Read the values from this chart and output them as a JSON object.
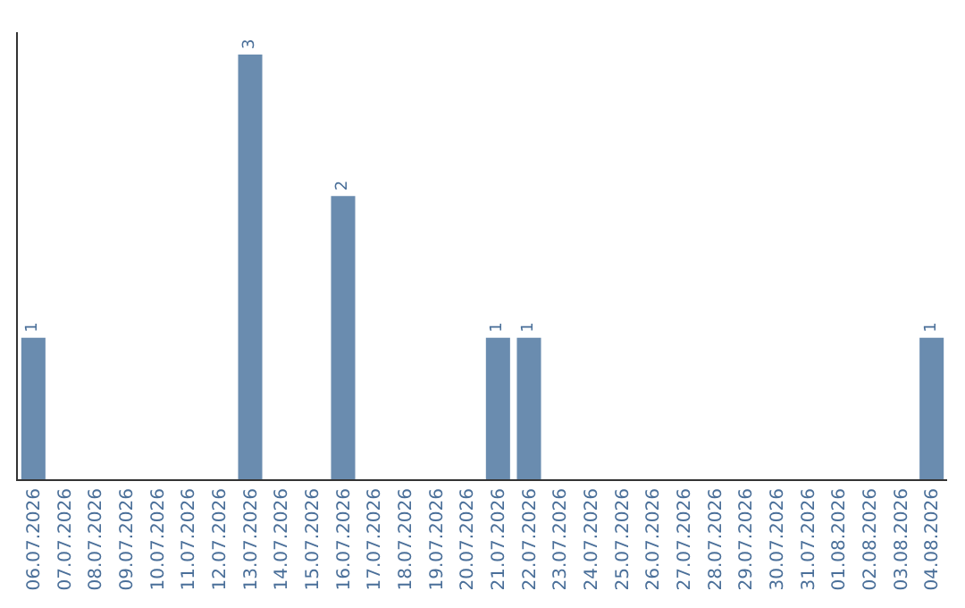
{
  "chart_data": {
    "type": "bar",
    "categories": [
      "06.07.2026",
      "07.07.2026",
      "08.07.2026",
      "09.07.2026",
      "10.07.2026",
      "11.07.2026",
      "12.07.2026",
      "13.07.2026",
      "14.07.2026",
      "15.07.2026",
      "16.07.2026",
      "17.07.2026",
      "18.07.2026",
      "19.07.2026",
      "20.07.2026",
      "21.07.2026",
      "22.07.2026",
      "23.07.2026",
      "24.07.2026",
      "25.07.2026",
      "26.07.2026",
      "27.07.2026",
      "28.07.2026",
      "29.07.2026",
      "30.07.2026",
      "31.07.2026",
      "01.08.2026",
      "02.08.2026",
      "03.08.2026",
      "04.08.2026"
    ],
    "values": [
      1,
      0,
      0,
      0,
      0,
      0,
      0,
      3,
      0,
      0,
      2,
      0,
      0,
      0,
      0,
      1,
      1,
      0,
      0,
      0,
      0,
      0,
      0,
      0,
      0,
      0,
      0,
      0,
      0,
      1
    ],
    "value_labels": [
      "1",
      null,
      null,
      null,
      null,
      null,
      null,
      "3",
      null,
      null,
      "2",
      null,
      null,
      null,
      null,
      "1",
      "1",
      null,
      null,
      null,
      null,
      null,
      null,
      null,
      null,
      null,
      null,
      null,
      null,
      "1"
    ],
    "color": "#6a8caf"
  }
}
